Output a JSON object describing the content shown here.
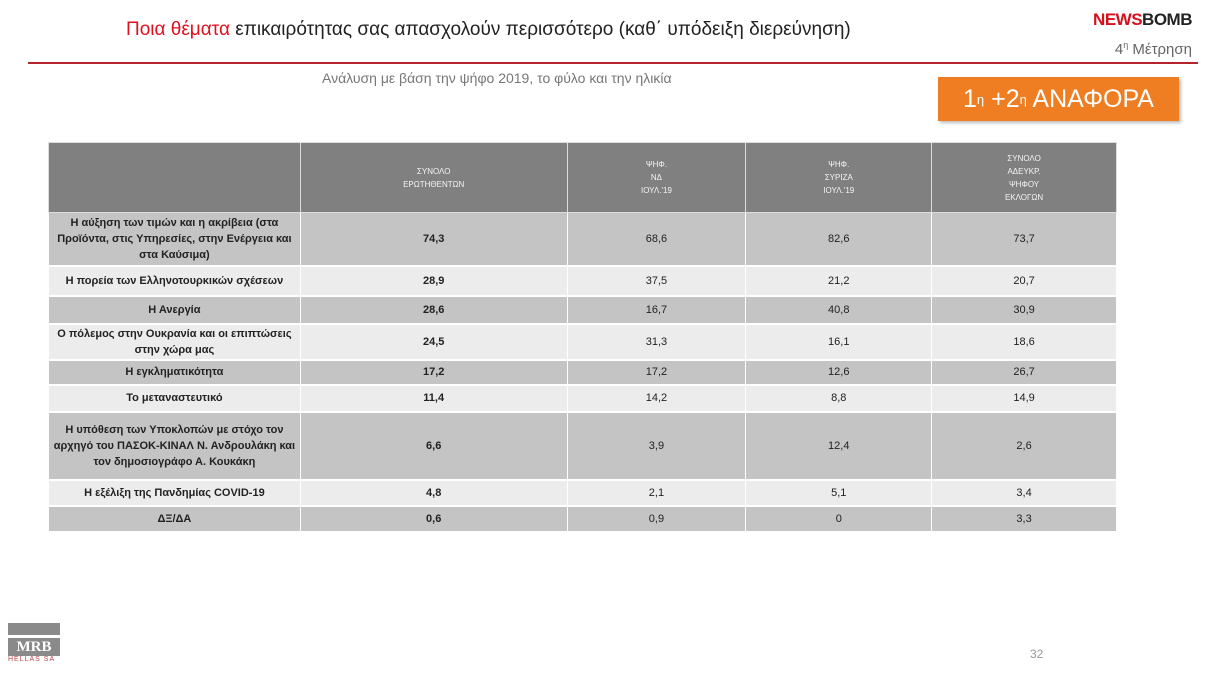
{
  "header": {
    "title_highlight": "Ποια θέματα",
    "title_rest": " επικαιρότητας σας απασχολούν περισσότερο (καθ΄ υπόδειξη διερεύνηση)",
    "logo_a": "NEWS",
    "logo_b": "BOMB",
    "measure_num": "4",
    "measure_sup": "η",
    "measure_text": " Μέτρηση",
    "subtitle": "Ανάλυση με βάση την ψήφο 2019, το φύλο και την ηλικία"
  },
  "badge": {
    "a": "1",
    "sup1": "η",
    "b": " +2",
    "sup2": "η",
    "c": " ΑΝΑΦΟΡΑ"
  },
  "colors": {
    "accent": "#e0101e",
    "badge": "#ef7d22",
    "header_bg": "#808080"
  },
  "table": {
    "columns": [
      "",
      "ΣΥΝΟΛΟ\nΕΡΩΤΗΘΕΝΤΩΝ",
      "ΨΗΦ.\nΝΔ\nΙΟΥΛ.'19",
      "ΨΗΦ.\nΣΥΡΙΖΑ\nΙΟΥΛ.'19",
      "ΣΥΝΟΛΟ\nΑΔΕΥΚΡ.\nΨΗΦΟΥ\nΕΚΛΟΓΩΝ"
    ],
    "rows": [
      [
        "Η αύξηση των τιμών και η ακρίβεια (στα Προϊόντα, στις Υπηρεσίες, στην Ενέργεια και στα Καύσιμα)",
        "74,3",
        "68,6",
        "82,6",
        "73,7"
      ],
      [
        "Η πορεία των Ελληνοτουρκικών σχέσεων",
        "28,9",
        "37,5",
        "21,2",
        "20,7"
      ],
      [
        "Η Ανεργία",
        "28,6",
        "16,7",
        "40,8",
        "30,9"
      ],
      [
        "Ο πόλεμος στην Ουκρανία και οι επιπτώσεις στην χώρα μας",
        "24,5",
        "31,3",
        "16,1",
        "18,6"
      ],
      [
        "Η εγκληματικότητα",
        "17,2",
        "17,2",
        "12,6",
        "26,7"
      ],
      [
        "Το μεταναστευτικό",
        "11,4",
        "14,2",
        "8,8",
        "14,9"
      ],
      [
        "Η υπόθεση των Υποκλοπών με στόχο τον αρχηγό του ΠΑΣΟΚ-ΚΙΝΑΛ Ν. Ανδρουλάκη και τον δημοσιογράφο Α. Κουκάκη",
        "6,6",
        "3,9",
        "12,4",
        "2,6"
      ],
      [
        "Η εξέλιξη της Πανδημίας COVID-19",
        "4,8",
        "2,1",
        "5,1",
        "3,4"
      ],
      [
        "ΔΞ/ΔΑ",
        "0,6",
        "0,9",
        "0",
        "3,3"
      ]
    ]
  },
  "footer": {
    "logo": "MRB",
    "logo_sub": "HELLAS SA",
    "page": "32"
  }
}
